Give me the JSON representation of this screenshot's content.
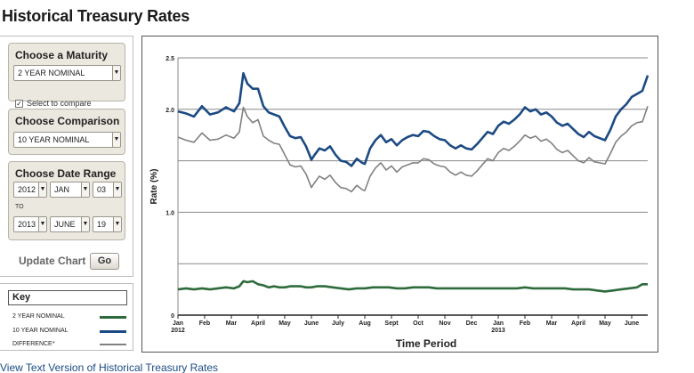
{
  "page": {
    "title": "Historical Treasury Rates",
    "text_version_link": "View Text Version of Historical Treasury Rates"
  },
  "maturity_panel": {
    "title": "Choose a Maturity",
    "selected": "2 YEAR NOMINAL",
    "compare_label": "Select to compare",
    "compare_checked": true
  },
  "comparison_panel": {
    "title": "Choose Comparison",
    "selected": "10 YEAR NOMINAL"
  },
  "date_panel": {
    "title": "Choose Date Range",
    "start": {
      "year": "2012",
      "month": "JAN",
      "day": "03"
    },
    "to_label": "TO",
    "end": {
      "year": "2013",
      "month": "JUNE",
      "day": "19"
    }
  },
  "update": {
    "label": "Update Chart",
    "button": "Go"
  },
  "key": {
    "title": "Key",
    "items": [
      {
        "label": "2 YEAR NOMINAL",
        "color": "#2e6b3c"
      },
      {
        "label": "10 YEAR NOMINAL",
        "color": "#1c4a83"
      },
      {
        "label": "DIFFERENCE*",
        "color": "#808080"
      }
    ]
  },
  "chart_data": {
    "type": "line",
    "xlabel": "Time Period",
    "ylabel": "Rate (%)",
    "ylim": [
      0,
      2.5
    ],
    "y_ticks": [
      0,
      1.0,
      2.0,
      2.5
    ],
    "y_tick_labels": [
      "0",
      "1.0",
      "2.0",
      "2.5"
    ],
    "x_ticks": [
      {
        "label": "Jan",
        "sub": "2012",
        "t": 0
      },
      {
        "label": "Feb",
        "sub": "",
        "t": 1
      },
      {
        "label": "Mar",
        "sub": "",
        "t": 2
      },
      {
        "label": "April",
        "sub": "",
        "t": 3
      },
      {
        "label": "May",
        "sub": "",
        "t": 4
      },
      {
        "label": "June",
        "sub": "",
        "t": 5
      },
      {
        "label": "July",
        "sub": "",
        "t": 6
      },
      {
        "label": "Aug",
        "sub": "",
        "t": 7
      },
      {
        "label": "Sept",
        "sub": "",
        "t": 8
      },
      {
        "label": "Oct",
        "sub": "",
        "t": 9
      },
      {
        "label": "Nov",
        "sub": "",
        "t": 10
      },
      {
        "label": "Dec",
        "sub": "",
        "t": 11
      },
      {
        "label": "Jan",
        "sub": "2013",
        "t": 12
      },
      {
        "label": "Feb",
        "sub": "",
        "t": 13
      },
      {
        "label": "Mar",
        "sub": "",
        "t": 14
      },
      {
        "label": "April",
        "sub": "",
        "t": 15
      },
      {
        "label": "May",
        "sub": "",
        "t": 16
      },
      {
        "label": "June",
        "sub": "",
        "t": 17
      }
    ],
    "x_range": [
      0,
      17.6
    ],
    "grid": true,
    "legend": "separate-key-panel",
    "series": [
      {
        "name": "10 YEAR NOMINAL",
        "color": "#1c4a83",
        "points": [
          [
            0,
            1.98
          ],
          [
            0.3,
            1.96
          ],
          [
            0.6,
            1.93
          ],
          [
            0.9,
            2.03
          ],
          [
            1.2,
            1.95
          ],
          [
            1.5,
            1.97
          ],
          [
            1.8,
            2.02
          ],
          [
            2.1,
            1.98
          ],
          [
            2.3,
            2.06
          ],
          [
            2.45,
            2.35
          ],
          [
            2.6,
            2.25
          ],
          [
            2.8,
            2.2
          ],
          [
            3.0,
            2.2
          ],
          [
            3.2,
            2.03
          ],
          [
            3.4,
            1.97
          ],
          [
            3.6,
            1.95
          ],
          [
            3.8,
            1.93
          ],
          [
            4.0,
            1.83
          ],
          [
            4.2,
            1.74
          ],
          [
            4.4,
            1.72
          ],
          [
            4.6,
            1.73
          ],
          [
            4.8,
            1.64
          ],
          [
            5.0,
            1.51
          ],
          [
            5.1,
            1.55
          ],
          [
            5.3,
            1.62
          ],
          [
            5.5,
            1.6
          ],
          [
            5.7,
            1.64
          ],
          [
            5.9,
            1.56
          ],
          [
            6.1,
            1.5
          ],
          [
            6.3,
            1.49
          ],
          [
            6.5,
            1.45
          ],
          [
            6.7,
            1.52
          ],
          [
            6.9,
            1.48
          ],
          [
            7.0,
            1.47
          ],
          [
            7.2,
            1.62
          ],
          [
            7.4,
            1.7
          ],
          [
            7.6,
            1.75
          ],
          [
            7.8,
            1.68
          ],
          [
            8.0,
            1.71
          ],
          [
            8.2,
            1.65
          ],
          [
            8.4,
            1.7
          ],
          [
            8.6,
            1.73
          ],
          [
            8.8,
            1.75
          ],
          [
            9.0,
            1.74
          ],
          [
            9.2,
            1.79
          ],
          [
            9.4,
            1.78
          ],
          [
            9.6,
            1.74
          ],
          [
            9.8,
            1.71
          ],
          [
            10.0,
            1.7
          ],
          [
            10.2,
            1.65
          ],
          [
            10.4,
            1.62
          ],
          [
            10.6,
            1.65
          ],
          [
            10.8,
            1.62
          ],
          [
            11.0,
            1.61
          ],
          [
            11.2,
            1.66
          ],
          [
            11.4,
            1.72
          ],
          [
            11.6,
            1.78
          ],
          [
            11.8,
            1.76
          ],
          [
            12.0,
            1.84
          ],
          [
            12.2,
            1.88
          ],
          [
            12.4,
            1.86
          ],
          [
            12.6,
            1.9
          ],
          [
            12.8,
            1.95
          ],
          [
            13.0,
            2.02
          ],
          [
            13.2,
            1.98
          ],
          [
            13.4,
            2.0
          ],
          [
            13.6,
            1.95
          ],
          [
            13.8,
            1.97
          ],
          [
            14.0,
            1.93
          ],
          [
            14.2,
            1.87
          ],
          [
            14.4,
            1.84
          ],
          [
            14.6,
            1.86
          ],
          [
            14.8,
            1.81
          ],
          [
            15.0,
            1.76
          ],
          [
            15.2,
            1.73
          ],
          [
            15.4,
            1.78
          ],
          [
            15.6,
            1.74
          ],
          [
            15.8,
            1.72
          ],
          [
            16.0,
            1.7
          ],
          [
            16.2,
            1.8
          ],
          [
            16.4,
            1.93
          ],
          [
            16.6,
            2.0
          ],
          [
            16.8,
            2.05
          ],
          [
            17.0,
            2.12
          ],
          [
            17.2,
            2.15
          ],
          [
            17.4,
            2.18
          ],
          [
            17.6,
            2.33
          ]
        ]
      },
      {
        "name": "DIFFERENCE*",
        "color": "#808080",
        "points": [
          [
            0,
            1.73
          ],
          [
            0.3,
            1.7
          ],
          [
            0.6,
            1.68
          ],
          [
            0.9,
            1.77
          ],
          [
            1.2,
            1.7
          ],
          [
            1.5,
            1.71
          ],
          [
            1.8,
            1.75
          ],
          [
            2.1,
            1.72
          ],
          [
            2.3,
            1.78
          ],
          [
            2.45,
            2.02
          ],
          [
            2.6,
            1.93
          ],
          [
            2.8,
            1.87
          ],
          [
            3.0,
            1.9
          ],
          [
            3.2,
            1.74
          ],
          [
            3.4,
            1.7
          ],
          [
            3.6,
            1.67
          ],
          [
            3.8,
            1.66
          ],
          [
            4.0,
            1.56
          ],
          [
            4.2,
            1.46
          ],
          [
            4.4,
            1.44
          ],
          [
            4.6,
            1.45
          ],
          [
            4.8,
            1.37
          ],
          [
            5.0,
            1.24
          ],
          [
            5.1,
            1.28
          ],
          [
            5.3,
            1.35
          ],
          [
            5.5,
            1.32
          ],
          [
            5.7,
            1.36
          ],
          [
            5.9,
            1.29
          ],
          [
            6.1,
            1.24
          ],
          [
            6.3,
            1.23
          ],
          [
            6.5,
            1.2
          ],
          [
            6.7,
            1.26
          ],
          [
            6.9,
            1.22
          ],
          [
            7.0,
            1.21
          ],
          [
            7.2,
            1.35
          ],
          [
            7.4,
            1.43
          ],
          [
            7.6,
            1.48
          ],
          [
            7.8,
            1.41
          ],
          [
            8.0,
            1.45
          ],
          [
            8.2,
            1.39
          ],
          [
            8.4,
            1.44
          ],
          [
            8.6,
            1.46
          ],
          [
            8.8,
            1.48
          ],
          [
            9.0,
            1.48
          ],
          [
            9.2,
            1.52
          ],
          [
            9.4,
            1.51
          ],
          [
            9.6,
            1.47
          ],
          [
            9.8,
            1.45
          ],
          [
            10.0,
            1.44
          ],
          [
            10.2,
            1.39
          ],
          [
            10.4,
            1.36
          ],
          [
            10.6,
            1.39
          ],
          [
            10.8,
            1.36
          ],
          [
            11.0,
            1.35
          ],
          [
            11.2,
            1.4
          ],
          [
            11.4,
            1.46
          ],
          [
            11.6,
            1.52
          ],
          [
            11.8,
            1.5
          ],
          [
            12.0,
            1.58
          ],
          [
            12.2,
            1.62
          ],
          [
            12.4,
            1.6
          ],
          [
            12.6,
            1.64
          ],
          [
            12.8,
            1.69
          ],
          [
            13.0,
            1.75
          ],
          [
            13.2,
            1.72
          ],
          [
            13.4,
            1.74
          ],
          [
            13.6,
            1.69
          ],
          [
            13.8,
            1.71
          ],
          [
            14.0,
            1.67
          ],
          [
            14.2,
            1.61
          ],
          [
            14.4,
            1.58
          ],
          [
            14.6,
            1.6
          ],
          [
            14.8,
            1.55
          ],
          [
            15.0,
            1.5
          ],
          [
            15.2,
            1.48
          ],
          [
            15.4,
            1.53
          ],
          [
            15.6,
            1.49
          ],
          [
            15.8,
            1.48
          ],
          [
            16.0,
            1.47
          ],
          [
            16.2,
            1.57
          ],
          [
            16.4,
            1.68
          ],
          [
            16.6,
            1.74
          ],
          [
            16.8,
            1.78
          ],
          [
            17.0,
            1.84
          ],
          [
            17.2,
            1.87
          ],
          [
            17.4,
            1.88
          ],
          [
            17.6,
            2.03
          ]
        ]
      },
      {
        "name": "2 YEAR NOMINAL",
        "color": "#2e6b3c",
        "points": [
          [
            0,
            0.25
          ],
          [
            0.3,
            0.26
          ],
          [
            0.6,
            0.25
          ],
          [
            0.9,
            0.26
          ],
          [
            1.2,
            0.25
          ],
          [
            1.5,
            0.26
          ],
          [
            1.8,
            0.27
          ],
          [
            2.1,
            0.26
          ],
          [
            2.3,
            0.28
          ],
          [
            2.45,
            0.33
          ],
          [
            2.6,
            0.32
          ],
          [
            2.8,
            0.33
          ],
          [
            3.0,
            0.3
          ],
          [
            3.2,
            0.29
          ],
          [
            3.4,
            0.27
          ],
          [
            3.6,
            0.28
          ],
          [
            3.8,
            0.27
          ],
          [
            4.0,
            0.27
          ],
          [
            4.2,
            0.28
          ],
          [
            4.4,
            0.28
          ],
          [
            4.6,
            0.28
          ],
          [
            4.8,
            0.27
          ],
          [
            5.0,
            0.27
          ],
          [
            5.2,
            0.28
          ],
          [
            5.5,
            0.28
          ],
          [
            5.8,
            0.27
          ],
          [
            6.1,
            0.26
          ],
          [
            6.4,
            0.25
          ],
          [
            6.7,
            0.26
          ],
          [
            7.0,
            0.26
          ],
          [
            7.3,
            0.27
          ],
          [
            7.6,
            0.27
          ],
          [
            7.9,
            0.27
          ],
          [
            8.2,
            0.26
          ],
          [
            8.5,
            0.26
          ],
          [
            8.8,
            0.27
          ],
          [
            9.1,
            0.27
          ],
          [
            9.4,
            0.27
          ],
          [
            9.7,
            0.26
          ],
          [
            10.0,
            0.26
          ],
          [
            10.3,
            0.26
          ],
          [
            10.6,
            0.26
          ],
          [
            10.9,
            0.26
          ],
          [
            11.2,
            0.26
          ],
          [
            11.5,
            0.26
          ],
          [
            11.8,
            0.26
          ],
          [
            12.1,
            0.26
          ],
          [
            12.4,
            0.26
          ],
          [
            12.7,
            0.26
          ],
          [
            13.0,
            0.27
          ],
          [
            13.3,
            0.26
          ],
          [
            13.6,
            0.26
          ],
          [
            13.9,
            0.26
          ],
          [
            14.2,
            0.26
          ],
          [
            14.5,
            0.26
          ],
          [
            14.8,
            0.25
          ],
          [
            15.1,
            0.25
          ],
          [
            15.4,
            0.25
          ],
          [
            15.7,
            0.24
          ],
          [
            16.0,
            0.23
          ],
          [
            16.3,
            0.24
          ],
          [
            16.6,
            0.25
          ],
          [
            16.9,
            0.26
          ],
          [
            17.2,
            0.27
          ],
          [
            17.4,
            0.3
          ],
          [
            17.6,
            0.3
          ]
        ]
      }
    ]
  }
}
